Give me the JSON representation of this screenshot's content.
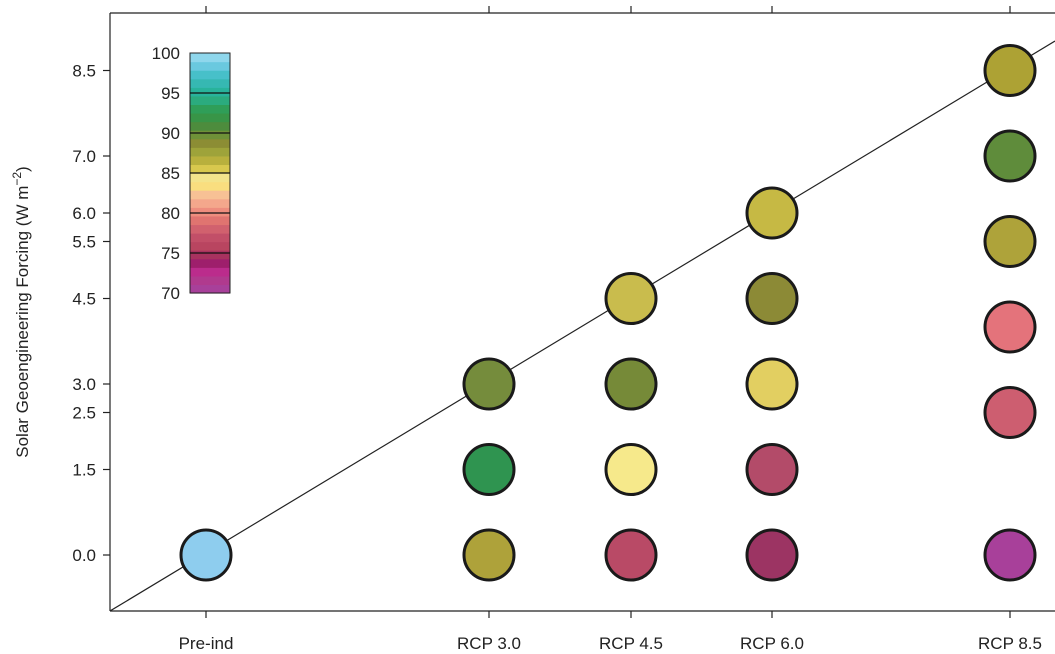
{
  "chart_data": {
    "type": "scatter",
    "title": "",
    "xlabel": "",
    "ylabel": {
      "main": "Solar Geoengineering Forcing (W m",
      "superscript": "−2",
      "suffix": ")"
    },
    "x_categories": [
      "Pre-ind",
      "RCP 3.0",
      "RCP 4.5",
      "RCP 6.0",
      "RCP 8.5"
    ],
    "y_ticks": [
      "0.0",
      "1.5",
      "2.5",
      "3.0",
      "4.5",
      "5.5",
      "6.0",
      "7.0",
      "8.5"
    ],
    "ylim": [
      -1.0,
      10.0
    ],
    "reference_line": "y = x (full offset)",
    "grid": false,
    "colorbar": {
      "range": [
        70,
        100
      ],
      "tick_labels": [
        "100",
        "95",
        "90",
        "85",
        "80",
        "75",
        "70"
      ],
      "placement": "top-left",
      "colors": [
        "#a8409a",
        "#b03a8e",
        "#bb2c8c",
        "#9e1f6c",
        "#a8325f",
        "#b94560",
        "#c24f68",
        "#d1616e",
        "#e07470",
        "#ee8d7e",
        "#f4a78c",
        "#f7c195",
        "#f9de7f",
        "#f3e48c",
        "#d8c84e",
        "#b8b03d",
        "#9ea33a",
        "#8c8d34",
        "#6f9138",
        "#4d8c3d",
        "#389547",
        "#2f9e58",
        "#2bab7e",
        "#28b39b",
        "#36b8b2",
        "#47c0c9",
        "#6ac9df",
        "#8fd7ec"
      ]
    },
    "points": [
      {
        "x": "Pre-ind",
        "y": 0.0,
        "color": "#8ecdee"
      },
      {
        "x": "RCP 3.0",
        "y": 0.0,
        "color": "#aea23a"
      },
      {
        "x": "RCP 3.0",
        "y": 1.5,
        "color": "#2f9450"
      },
      {
        "x": "RCP 3.0",
        "y": 3.0,
        "color": "#758c3c"
      },
      {
        "x": "RCP 4.5",
        "y": 0.0,
        "color": "#b94a66"
      },
      {
        "x": "RCP 4.5",
        "y": 1.5,
        "color": "#f6e98b"
      },
      {
        "x": "RCP 4.5",
        "y": 3.0,
        "color": "#768a38"
      },
      {
        "x": "RCP 4.5",
        "y": 4.5,
        "color": "#c9bc4d"
      },
      {
        "x": "RCP 6.0",
        "y": 0.0,
        "color": "#9c3463"
      },
      {
        "x": "RCP 6.0",
        "y": 1.5,
        "color": "#b34b69"
      },
      {
        "x": "RCP 6.0",
        "y": 3.0,
        "color": "#e2cf61"
      },
      {
        "x": "RCP 6.0",
        "y": 4.5,
        "color": "#8c8a36"
      },
      {
        "x": "RCP 6.0",
        "y": 6.0,
        "color": "#c6b944"
      },
      {
        "x": "RCP 8.5",
        "y": 0.0,
        "color": "#a8409a"
      },
      {
        "x": "RCP 8.5",
        "y": 2.5,
        "color": "#cd5e70"
      },
      {
        "x": "RCP 8.5",
        "y": 4.0,
        "color": "#e4737b"
      },
      {
        "x": "RCP 8.5",
        "y": 5.5,
        "color": "#aea33a"
      },
      {
        "x": "RCP 8.5",
        "y": 7.0,
        "color": "#5f8c3b"
      },
      {
        "x": "RCP 8.5",
        "y": 8.5,
        "color": "#ada234"
      }
    ]
  }
}
